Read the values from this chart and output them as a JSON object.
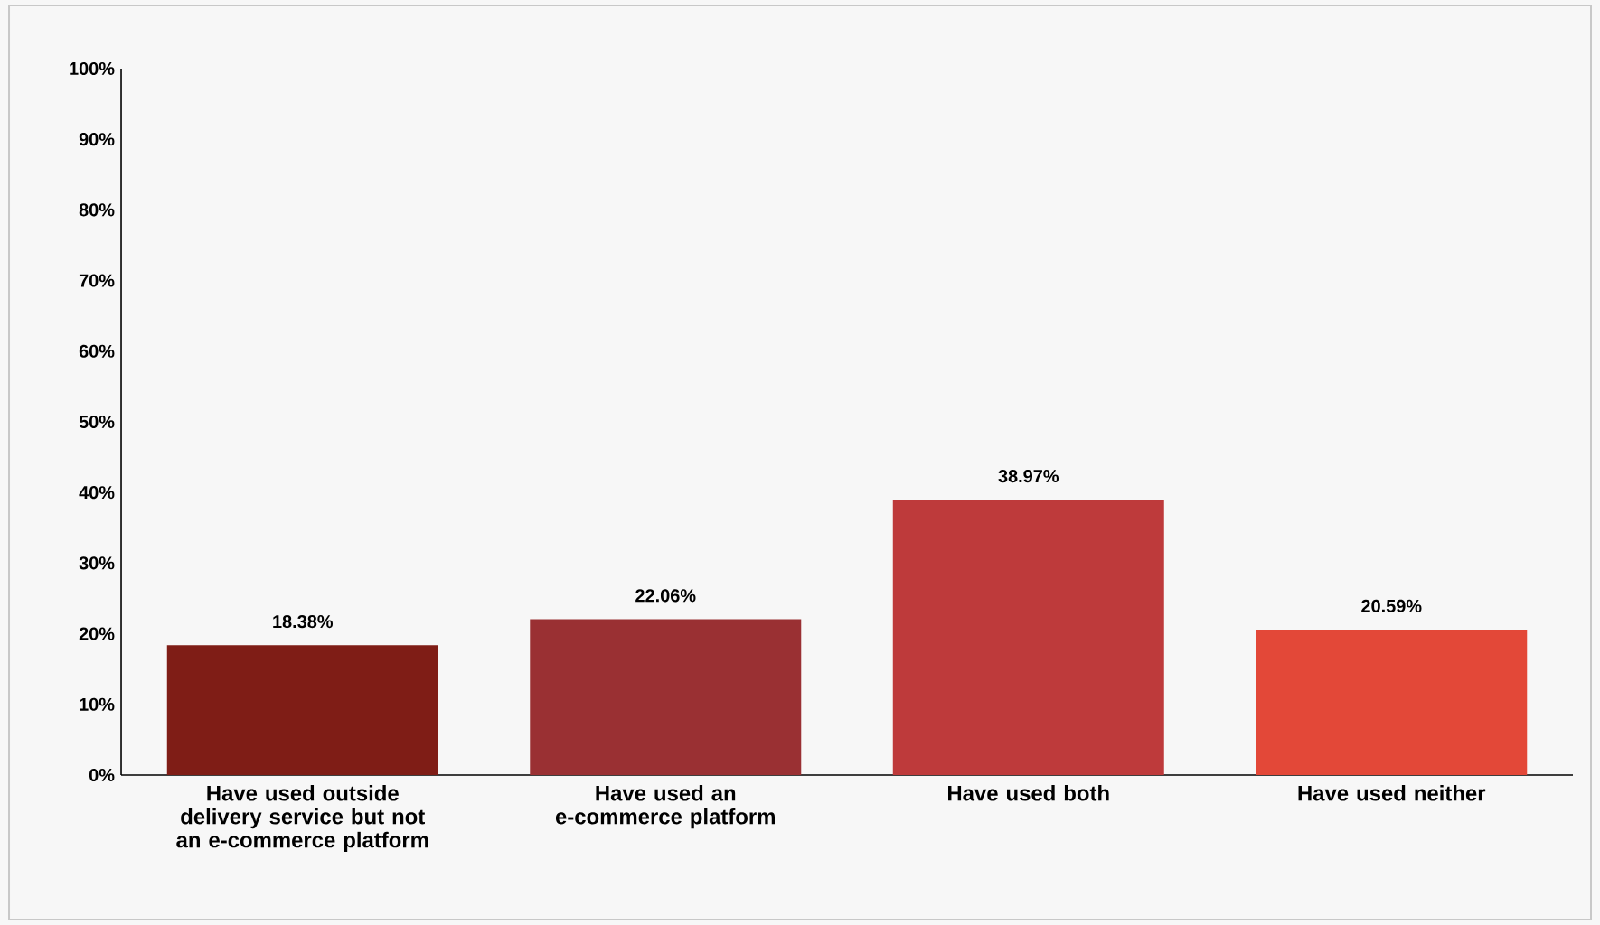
{
  "chart_data": {
    "type": "bar",
    "categories": [
      "Have used outside delivery service but not an e-commerce platform",
      "Have used an e-commerce platform",
      "Have used both",
      "Have used neither"
    ],
    "values": [
      18.38,
      22.06,
      38.97,
      20.59
    ],
    "colors": [
      "#7f1d16",
      "#9a3033",
      "#be3a3b",
      "#e34838"
    ],
    "value_labels": [
      "18.38%",
      "22.06%",
      "38.97%",
      "20.59%"
    ],
    "ylim": [
      0,
      100
    ],
    "yticks": [
      {
        "value": 0,
        "label": "0%"
      },
      {
        "value": 10,
        "label": "10%"
      },
      {
        "value": 20,
        "label": "20%"
      },
      {
        "value": 30,
        "label": "30%"
      },
      {
        "value": 40,
        "label": "40%"
      },
      {
        "value": 50,
        "label": "50%"
      },
      {
        "value": 60,
        "label": "60%"
      },
      {
        "value": 70,
        "label": "70%"
      },
      {
        "value": 80,
        "label": "80%"
      },
      {
        "value": 90,
        "label": "90%"
      },
      {
        "value": 100,
        "label": "100%"
      }
    ],
    "grid": false
  }
}
